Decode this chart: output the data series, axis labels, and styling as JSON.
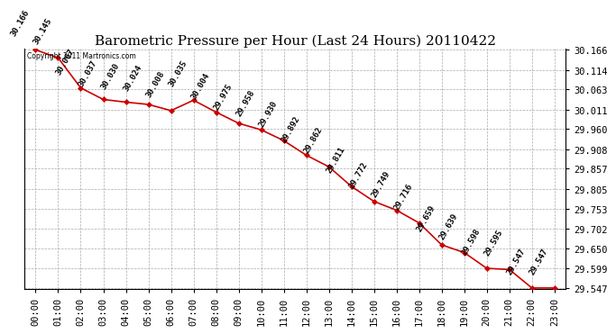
{
  "title": "Barometric Pressure per Hour (Last 24 Hours) 20110422",
  "copyright": "Copyright 2011 Martronics.com",
  "hours": [
    "00:00",
    "01:00",
    "02:00",
    "03:00",
    "04:00",
    "05:00",
    "06:00",
    "07:00",
    "08:00",
    "09:00",
    "10:00",
    "11:00",
    "12:00",
    "13:00",
    "14:00",
    "15:00",
    "16:00",
    "17:00",
    "18:00",
    "19:00",
    "20:00",
    "21:00",
    "22:00",
    "23:00"
  ],
  "values": [
    30.166,
    30.145,
    30.067,
    30.037,
    30.03,
    30.024,
    30.008,
    30.035,
    30.004,
    29.975,
    29.958,
    29.93,
    29.892,
    29.862,
    29.811,
    29.772,
    29.749,
    29.716,
    29.659,
    29.639,
    29.598,
    29.595,
    29.547,
    29.547
  ],
  "line_color": "#cc0000",
  "marker_color": "#cc0000",
  "bg_color": "#ffffff",
  "grid_color": "#aaaaaa",
  "yticks": [
    29.547,
    29.599,
    29.65,
    29.702,
    29.753,
    29.805,
    29.857,
    29.908,
    29.96,
    30.011,
    30.063,
    30.114,
    30.166
  ],
  "title_fontsize": 11,
  "label_fontsize": 6.5,
  "tick_fontsize": 7.5,
  "copyright_fontsize": 5.5
}
